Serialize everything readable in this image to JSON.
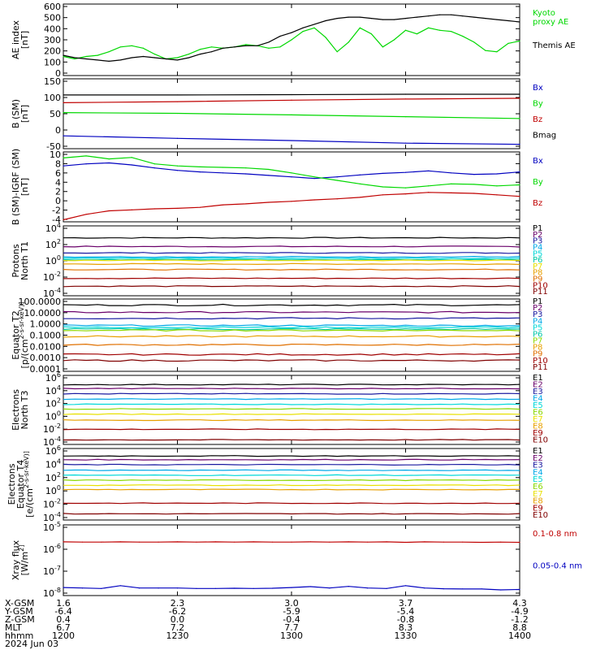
{
  "colors": {
    "black": "#000000",
    "green": "#00d800",
    "blue": "#0000c0",
    "red": "#c00000",
    "darkpurple": "#6a006a",
    "navy": "#1a1aa0",
    "lightblue": "#00a8e8",
    "cyan": "#00d8d8",
    "teal": "#00c8a8",
    "lime": "#8ad800",
    "yellow": "#e8e000",
    "orange": "#e8a000",
    "darkorange": "#e07000",
    "darkred": "#a00000",
    "maroon": "#800000"
  },
  "chart_data": [
    {
      "type": "line",
      "panel": "ae",
      "ylabel": [
        "AE index",
        "[nT]"
      ],
      "ylim": [
        0,
        600
      ],
      "yticks": [
        "600",
        "500",
        "400",
        "300",
        "200",
        "100",
        "0"
      ],
      "x": [
        1200,
        1203,
        1206,
        1209,
        1212,
        1215,
        1218,
        1221,
        1224,
        1227,
        1230,
        1233,
        1236,
        1239,
        1242,
        1245,
        1248,
        1251,
        1254,
        1257,
        1300,
        1303,
        1306,
        1309,
        1312,
        1315,
        1318,
        1321,
        1324,
        1327,
        1330,
        1333,
        1336,
        1339,
        1342,
        1345,
        1348,
        1351,
        1354,
        1357,
        1400
      ],
      "series": [
        {
          "name": "Kyoto proxy AE",
          "color": "green",
          "legend": [
            "Kyoto",
            "proxy AE"
          ],
          "values": [
            160,
            140,
            160,
            170,
            200,
            240,
            250,
            230,
            180,
            140,
            150,
            180,
            220,
            240,
            230,
            240,
            260,
            250,
            230,
            240,
            300,
            370,
            400,
            320,
            200,
            280,
            400,
            350,
            240,
            300,
            380,
            350,
            400,
            380,
            370,
            330,
            280,
            210,
            200,
            270,
            290
          ]
        },
        {
          "name": "Themis AE",
          "color": "black",
          "legend": [
            "Themis AE"
          ],
          "values": [
            170,
            150,
            140,
            130,
            120,
            130,
            150,
            160,
            150,
            140,
            130,
            150,
            180,
            200,
            230,
            240,
            250,
            250,
            280,
            330,
            360,
            400,
            430,
            460,
            480,
            490,
            490,
            480,
            470,
            470,
            480,
            490,
            500,
            510,
            510,
            500,
            490,
            480,
            470,
            460,
            450
          ]
        }
      ]
    },
    {
      "type": "line",
      "panel": "bsm",
      "ylabel": [
        "B (SM)",
        "[nT]"
      ],
      "ylim": [
        -40,
        150
      ],
      "yticks": [
        "150",
        "100",
        "50",
        "0",
        "-50"
      ],
      "x": [
        1200,
        1230,
        1300,
        1330,
        1400
      ],
      "series": [
        {
          "name": "Bx",
          "color": "blue",
          "values": [
            -5,
            -12,
            -18,
            -25,
            -28
          ]
        },
        {
          "name": "By",
          "color": "green",
          "values": [
            58,
            56,
            52,
            47,
            42
          ]
        },
        {
          "name": "Bz",
          "color": "red",
          "values": [
            85,
            88,
            92,
            95,
            97
          ]
        },
        {
          "name": "Bmag",
          "color": "black",
          "values": [
            106,
            106,
            107,
            108,
            108
          ]
        }
      ]
    },
    {
      "type": "line",
      "panel": "bigrf",
      "ylabel": [
        "B (SM)-IGRF (SM)",
        "[nT]"
      ],
      "ylim": [
        -4,
        10
      ],
      "yticks": [
        "10",
        "8",
        "6",
        "4",
        "2",
        "0",
        "-2",
        "-4"
      ],
      "x": [
        1200,
        1206,
        1212,
        1218,
        1224,
        1230,
        1236,
        1242,
        1248,
        1254,
        1300,
        1306,
        1312,
        1318,
        1324,
        1330,
        1336,
        1342,
        1348,
        1354,
        1400
      ],
      "series": [
        {
          "name": "Bx",
          "color": "blue",
          "values": [
            7.2,
            7.6,
            7.8,
            7.4,
            6.8,
            6.3,
            6.0,
            5.8,
            5.6,
            5.3,
            5.0,
            4.7,
            5.0,
            5.4,
            5.7,
            5.9,
            6.2,
            5.8,
            5.5,
            5.6,
            6.0
          ]
        },
        {
          "name": "By",
          "color": "green",
          "values": [
            8.8,
            9.2,
            8.6,
            8.9,
            7.6,
            7.2,
            7.0,
            6.9,
            6.8,
            6.5,
            5.8,
            5.0,
            4.3,
            3.6,
            3.0,
            2.8,
            3.2,
            3.6,
            3.5,
            3.2,
            3.4
          ]
        },
        {
          "name": "Bz",
          "color": "red",
          "values": [
            -3.6,
            -2.5,
            -1.8,
            -1.6,
            -1.4,
            -1.3,
            -1.1,
            -0.6,
            -0.4,
            -0.1,
            0.1,
            0.4,
            0.6,
            0.9,
            1.4,
            1.6,
            1.9,
            1.8,
            1.7,
            1.4,
            1.1
          ]
        }
      ]
    },
    {
      "type": "line",
      "panel": "pnorth",
      "log": true,
      "ylabel": [
        "Protons",
        "North T1"
      ],
      "ylim": [
        -4.8,
        4
      ],
      "yticks": [
        "10^4",
        "10^2",
        "10^0",
        "10^-2",
        "10^-4"
      ],
      "series": [
        {
          "name": "P1",
          "color": "black",
          "level": 2.5
        },
        {
          "name": "P2",
          "color": "darkpurple",
          "level": 1.4
        },
        {
          "name": "P3",
          "color": "navy",
          "level": 0.6
        },
        {
          "name": "P4",
          "color": "lightblue",
          "level": 0.1
        },
        {
          "name": "P5",
          "color": "cyan",
          "level": -0.1
        },
        {
          "name": "P6",
          "color": "teal",
          "level": -0.25
        },
        {
          "name": "P7",
          "color": "yellow",
          "level": -0.35
        },
        {
          "name": "P8",
          "color": "orange",
          "level": -0.8
        },
        {
          "name": "P9",
          "color": "darkorange",
          "level": -1.5
        },
        {
          "name": "P10",
          "color": "darkred",
          "level": -2.6
        },
        {
          "name": "P11",
          "color": "maroon",
          "level": -3.6
        }
      ]
    },
    {
      "type": "line",
      "panel": "peq",
      "log": true,
      "ylabel": [
        "Equator T2",
        "[p/(cm^2-s-sr-keV)]"
      ],
      "ylim": [
        -4,
        2
      ],
      "yticks": [
        "100.0000",
        "10.0000",
        "1.0000",
        "0.1000",
        "0.0100",
        "0.0010",
        "0.0001"
      ],
      "series": [
        {
          "name": "P1",
          "color": "black",
          "level": 1.5
        },
        {
          "name": "P2",
          "color": "darkpurple",
          "level": 0.9
        },
        {
          "name": "P3",
          "color": "navy",
          "level": 0.4
        },
        {
          "name": "P4",
          "color": "lightblue",
          "level": -0.2
        },
        {
          "name": "P5",
          "color": "cyan",
          "level": -0.35
        },
        {
          "name": "P6",
          "color": "teal",
          "level": -0.5
        },
        {
          "name": "P7",
          "color": "lime",
          "level": -0.6
        },
        {
          "name": "P8",
          "color": "orange",
          "level": -1.1
        },
        {
          "name": "P9",
          "color": "darkorange",
          "level": -1.8
        },
        {
          "name": "P10",
          "color": "darkred",
          "level": -2.6
        },
        {
          "name": "P11",
          "color": "maroon",
          "level": -3.1
        }
      ]
    },
    {
      "type": "line",
      "panel": "enorth",
      "log": true,
      "ylabel": [
        "Electrons",
        "North T3"
      ],
      "ylim": [
        -4.5,
        6
      ],
      "yticks": [
        "10^6",
        "10^4",
        "10^2",
        "10^0",
        "10^-2",
        "10^-4"
      ],
      "series": [
        {
          "name": "E1",
          "color": "black",
          "level": 4.6
        },
        {
          "name": "E2",
          "color": "darkpurple",
          "level": 4.0
        },
        {
          "name": "E3",
          "color": "navy",
          "level": 3.2
        },
        {
          "name": "E4",
          "color": "lightblue",
          "level": 2.4
        },
        {
          "name": "E5",
          "color": "cyan",
          "level": 1.6
        },
        {
          "name": "E6",
          "color": "lime",
          "level": 0.9
        },
        {
          "name": "E7",
          "color": "yellow",
          "level": 0.1
        },
        {
          "name": "E8",
          "color": "orange",
          "level": -0.8
        },
        {
          "name": "E9",
          "color": "darkred",
          "level": -2.2
        },
        {
          "name": "E10",
          "color": "maroon",
          "level": -3.8
        }
      ]
    },
    {
      "type": "line",
      "panel": "eeq",
      "log": true,
      "ylabel": [
        "Electrons",
        "Equator T4",
        "[e/(cm^2-s-sr-keV)]"
      ],
      "ylim": [
        -5.5,
        6
      ],
      "yticks": [
        "10^6",
        "10^4",
        "10^2",
        "10^0",
        "10^-2",
        "10^-4"
      ],
      "series": [
        {
          "name": "E1",
          "color": "black",
          "level": 4.8
        },
        {
          "name": "E2",
          "color": "darkpurple",
          "level": 4.2
        },
        {
          "name": "E3",
          "color": "navy",
          "level": 3.4
        },
        {
          "name": "E4",
          "color": "lightblue",
          "level": 2.5
        },
        {
          "name": "E5",
          "color": "cyan",
          "level": 1.7
        },
        {
          "name": "E6",
          "color": "lime",
          "level": 0.9
        },
        {
          "name": "E7",
          "color": "yellow",
          "level": 0.1
        },
        {
          "name": "E8",
          "color": "orange",
          "level": -0.6
        },
        {
          "name": "E9",
          "color": "darkred",
          "level": -2.8
        },
        {
          "name": "E10",
          "color": "maroon",
          "level": -4.5
        }
      ]
    },
    {
      "type": "line",
      "panel": "xray",
      "log": true,
      "ylabel": [
        "Xray flux",
        "[W/m^2]"
      ],
      "ylim": [
        -8,
        -5
      ],
      "yticks": [
        "10^-5",
        "10^-6",
        "10^-7",
        "10^-8"
      ],
      "x": [
        1200,
        1205,
        1210,
        1215,
        1220,
        1225,
        1230,
        1235,
        1240,
        1245,
        1250,
        1255,
        1300,
        1305,
        1310,
        1315,
        1320,
        1325,
        1330,
        1335,
        1340,
        1345,
        1350,
        1355,
        1400
      ],
      "series": [
        {
          "name": "0.1-0.8 nm",
          "color": "red",
          "values": [
            -5.72,
            -5.73,
            -5.73,
            -5.72,
            -5.73,
            -5.73,
            -5.72,
            -5.73,
            -5.72,
            -5.73,
            -5.72,
            -5.73,
            -5.73,
            -5.72,
            -5.73,
            -5.72,
            -5.73,
            -5.72,
            -5.74,
            -5.72,
            -5.73,
            -5.73,
            -5.74,
            -5.73,
            -5.74
          ]
        },
        {
          "name": "0.05-0.4 nm",
          "color": "blue",
          "values": [
            -7.66,
            -7.68,
            -7.7,
            -7.58,
            -7.68,
            -7.68,
            -7.68,
            -7.7,
            -7.7,
            -7.69,
            -7.7,
            -7.69,
            -7.66,
            -7.62,
            -7.68,
            -7.61,
            -7.68,
            -7.7,
            -7.58,
            -7.68,
            -7.71,
            -7.72,
            -7.72,
            -7.76,
            -7.74
          ]
        }
      ]
    }
  ],
  "footer": {
    "rows": [
      {
        "label": "X-GSM",
        "values": [
          "1.6",
          "2.3",
          "3.0",
          "3.7",
          "4.3"
        ]
      },
      {
        "label": "Y-GSM",
        "values": [
          "-6.4",
          "-6.2",
          "-5.9",
          "-5.4",
          "-4.9"
        ]
      },
      {
        "label": "Z-GSM",
        "values": [
          "0.4",
          "0.0",
          "-0.4",
          "-0.8",
          "-1.2"
        ]
      },
      {
        "label": "MLT",
        "values": [
          "6.7",
          "7.2",
          "7.7",
          "8.3",
          "8.8"
        ]
      },
      {
        "label": "hhmm",
        "values": [
          "1200",
          "1230",
          "1300",
          "1330",
          "1400"
        ]
      }
    ],
    "date": "2024 Jun 03"
  }
}
